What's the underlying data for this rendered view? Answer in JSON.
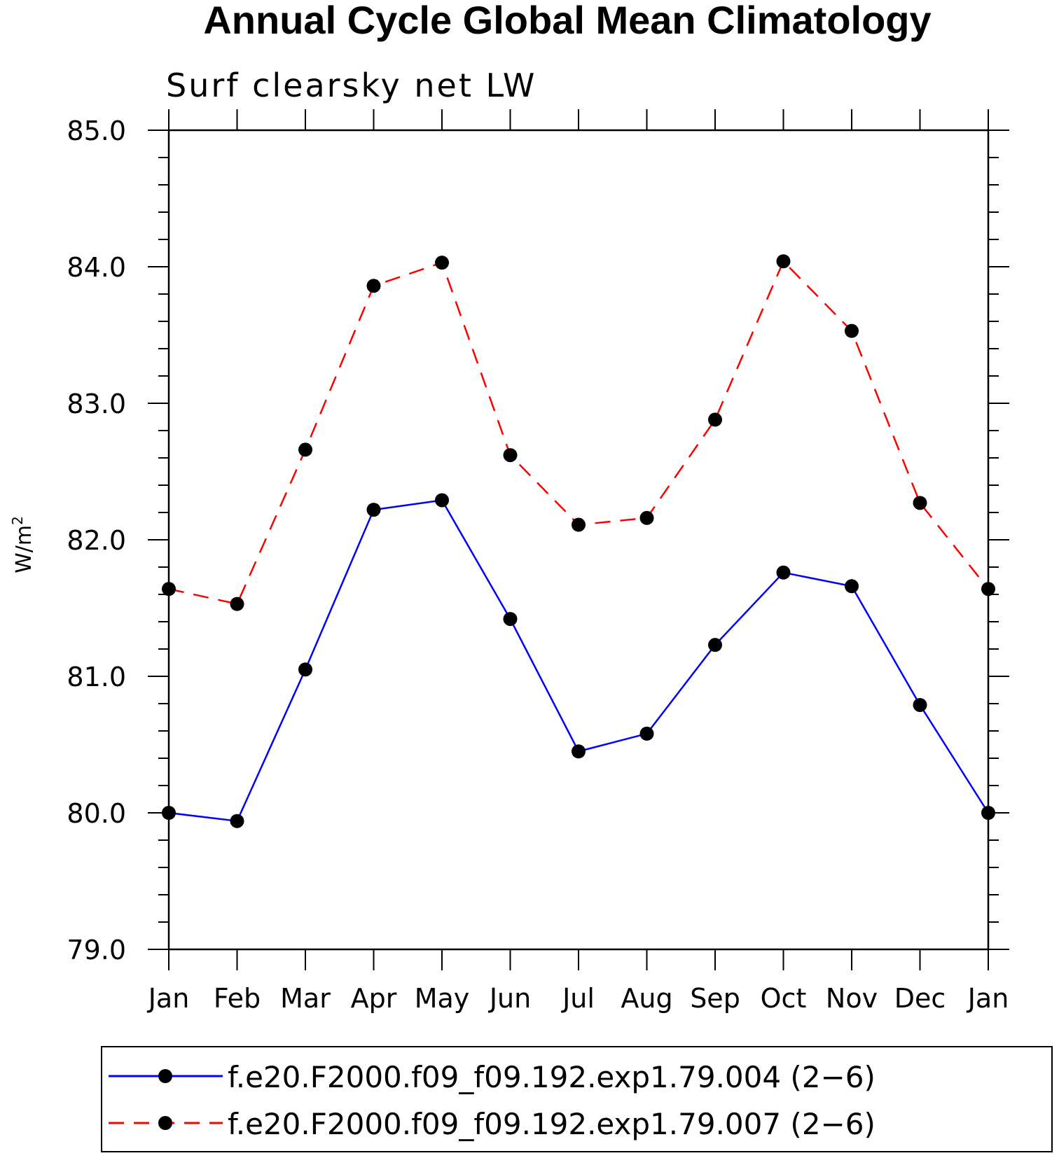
{
  "chart_data": {
    "type": "line",
    "title": "Annual Cycle Global Mean Climatology",
    "subtitle": "Surf clearsky net LW",
    "ylabel": "W/m",
    "ylabel_superscript": "2",
    "xlabel": "",
    "categories": [
      "Jan",
      "Feb",
      "Mar",
      "Apr",
      "May",
      "Jun",
      "Jul",
      "Aug",
      "Sep",
      "Oct",
      "Nov",
      "Dec",
      "Jan"
    ],
    "ylim": [
      79.0,
      85.0
    ],
    "yticks": [
      "79.0",
      "80.0",
      "81.0",
      "82.0",
      "83.0",
      "84.0",
      "85.0"
    ],
    "grid": false,
    "legend_position": "bottom",
    "series": [
      {
        "name": "f.e20.F2000.f09_f09.192.exp1.79.004 (2−6)",
        "color": "#0000ff",
        "dash": "solid",
        "values": [
          80.0,
          79.94,
          81.05,
          82.22,
          82.29,
          81.42,
          80.45,
          80.58,
          81.23,
          81.76,
          81.66,
          80.79,
          80.0
        ]
      },
      {
        "name": "f.e20.F2000.f09_f09.192.exp1.79.007 (2−6)",
        "color": "#ff0000",
        "dash": "dashed",
        "values": [
          81.64,
          81.53,
          82.66,
          83.86,
          84.03,
          82.62,
          82.11,
          82.16,
          82.88,
          84.04,
          83.53,
          82.27,
          81.64
        ]
      }
    ],
    "marker_color": "#000000"
  }
}
